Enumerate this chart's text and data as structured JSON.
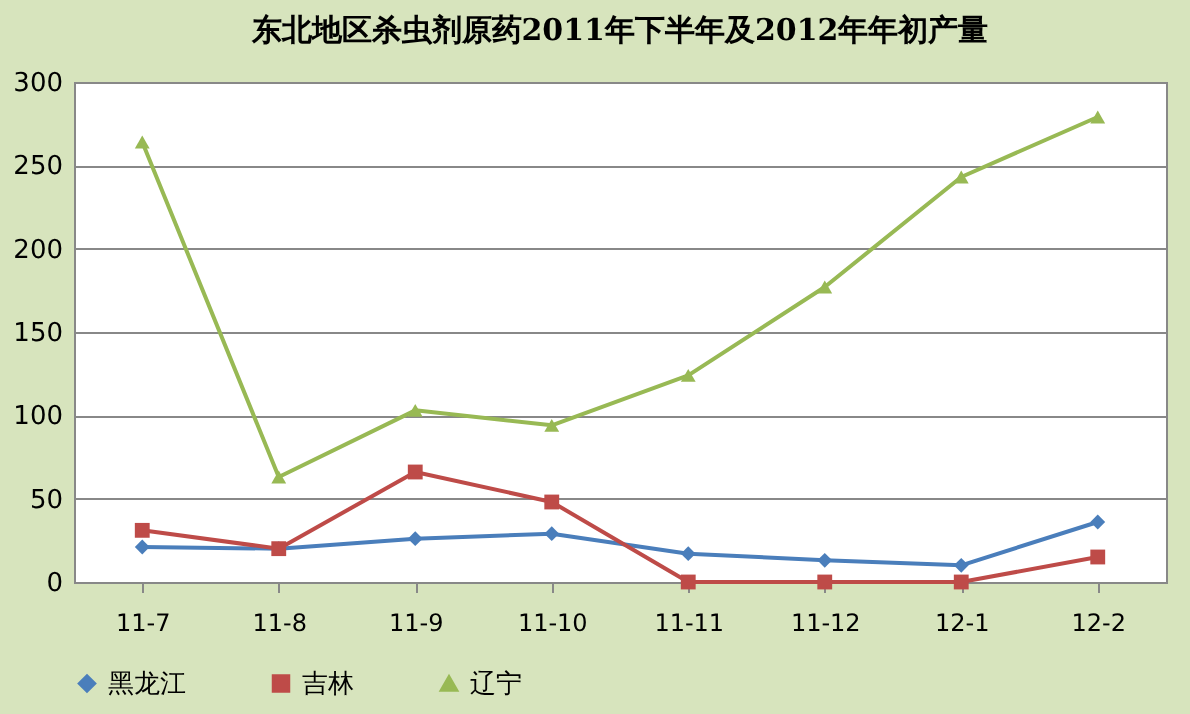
{
  "chart_data": {
    "type": "line",
    "title": "东北地区杀虫剂原药2011年下半年及2012年年初产量",
    "categories": [
      "11-7",
      "11-8",
      "11-9",
      "11-10",
      "11-11",
      "11-12",
      "12-1",
      "12-2"
    ],
    "series": [
      {
        "name": "黑龙江",
        "color": "#4a7ebb",
        "marker": "diamond",
        "values": [
          21,
          20,
          26,
          29,
          17,
          13,
          10,
          36
        ]
      },
      {
        "name": "吉林",
        "color": "#be4b48",
        "marker": "square",
        "values": [
          31,
          20,
          66,
          48,
          0,
          0,
          0,
          15
        ]
      },
      {
        "name": "辽宁",
        "color": "#98b954",
        "marker": "triangle",
        "values": [
          264,
          63,
          103,
          94,
          124,
          177,
          243,
          279
        ]
      }
    ],
    "ylim": [
      0,
      300
    ],
    "yticks": [
      0,
      50,
      100,
      150,
      200,
      250,
      300
    ],
    "grid": "y",
    "legend": "bottom"
  }
}
